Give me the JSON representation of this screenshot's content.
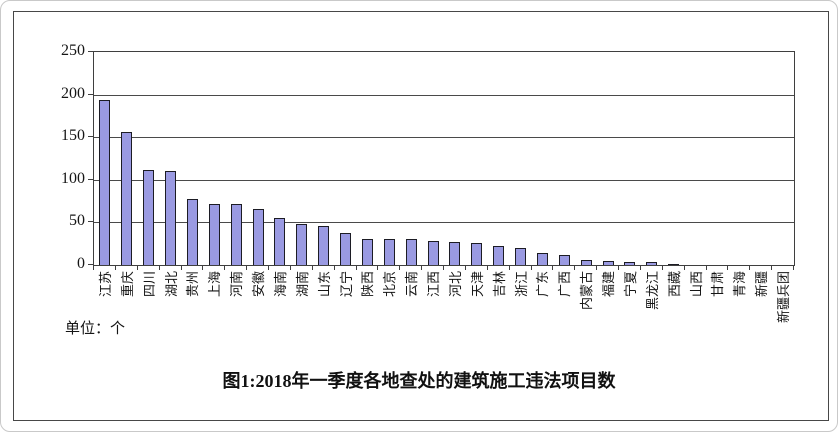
{
  "chart_data": {
    "type": "bar",
    "title": "图1:2018年一季度各地查处的建筑施工违法项目数",
    "unit_label": "单位：个",
    "categories": [
      "江苏",
      "重庆",
      "四川",
      "湖北",
      "贵州",
      "上海",
      "河南",
      "安徽",
      "海南",
      "湖南",
      "山东",
      "辽宁",
      "陕西",
      "北京",
      "云南",
      "江西",
      "河北",
      "天津",
      "吉林",
      "浙江",
      "广东",
      "广西",
      "内蒙古",
      "福建",
      "宁夏",
      "黑龙江",
      "西藏",
      "山西",
      "甘肃",
      "青海",
      "新疆",
      "新疆兵团"
    ],
    "values": [
      194,
      156,
      112,
      110,
      77,
      72,
      72,
      66,
      55,
      48,
      46,
      37,
      30,
      30,
      30,
      28,
      27,
      26,
      22,
      20,
      14,
      12,
      6,
      5,
      4,
      3,
      1,
      0,
      0,
      0,
      0,
      0
    ],
    "ylim": [
      0,
      250
    ],
    "yticks": [
      0,
      50,
      100,
      150,
      200,
      250
    ],
    "grid": true,
    "legend": false,
    "bar_color": "#9a9ae2",
    "bar_border_color": "#1c1c24",
    "axis_color": "#3f3f3f"
  }
}
